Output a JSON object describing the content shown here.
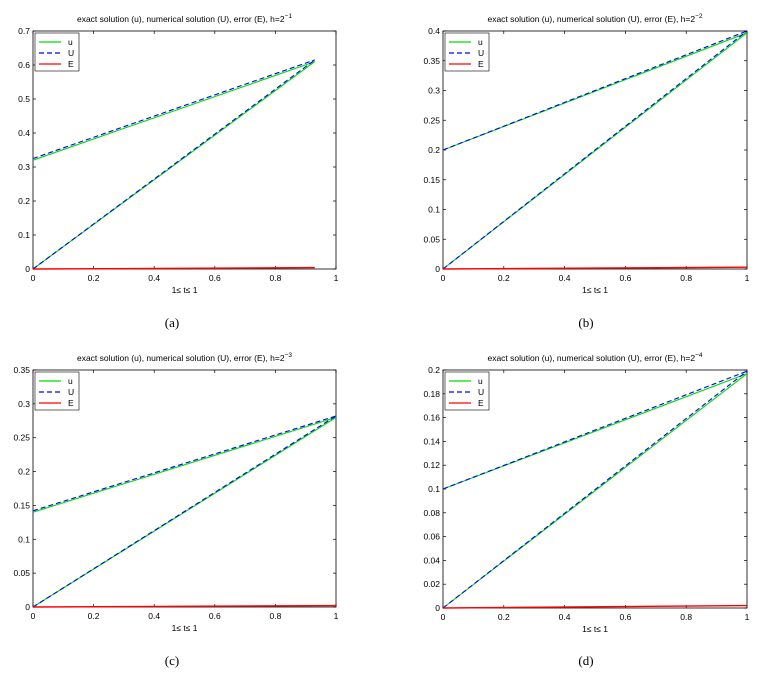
{
  "figure": {
    "panels": [
      {
        "id": "a",
        "caption": "(a)",
        "title_main": "exact solution (u), numerical solution (U), error (E), h=2",
        "title_exp": "−1",
        "xlabel": "1≤ t≤ 1"
      },
      {
        "id": "b",
        "caption": "(b)",
        "title_main": "exact solution (u), numerical solution (U), error (E), h=2",
        "title_exp": "−2",
        "xlabel": "1≤ t≤ 1"
      },
      {
        "id": "c",
        "caption": "(c)",
        "title_main": "exact solution (u), numerical solution (U), error (E), h=2",
        "title_exp": "−3",
        "xlabel": "1≤ t≤ 1"
      },
      {
        "id": "d",
        "caption": "(d)",
        "title_main": "exact solution (u), numerical solution (U), error (E), h=2",
        "title_exp": "−4",
        "xlabel": "1≤ t≤ 1"
      }
    ]
  },
  "chart_data": [
    {
      "type": "line",
      "title": "exact solution (u), numerical solution (U), error (E), h=2^-1",
      "xlabel": "1≤ t≤ 1",
      "ylabel": "",
      "xlim": [
        0,
        1
      ],
      "ylim": [
        0,
        0.7
      ],
      "xticks": [
        0,
        0.2,
        0.4,
        0.6,
        0.8,
        1
      ],
      "xtick_labels": [
        "0",
        "0.2",
        "0.4",
        "0.6",
        "0.8",
        "1"
      ],
      "yticks": [
        0,
        0.1,
        0.2,
        0.3,
        0.4,
        0.5,
        0.6,
        0.7
      ],
      "ytick_labels": [
        "0",
        "0.1",
        "0.2",
        "0.3",
        "0.4",
        "0.5",
        "0.6",
        "0.7"
      ],
      "legend": "top-left",
      "grid": false,
      "series": [
        {
          "name": "u",
          "color": "#00dd00",
          "style": "solid",
          "segments": [
            [
              [
                0,
                0.32
              ],
              [
                0.93,
                0.61
              ]
            ],
            [
              [
                0,
                0
              ],
              [
                0.93,
                0.61
              ]
            ]
          ]
        },
        {
          "name": "U",
          "color": "#0000ff",
          "style": "dashed",
          "segments": [
            [
              [
                0,
                0.325
              ],
              [
                0.93,
                0.615
              ]
            ],
            [
              [
                0,
                0
              ],
              [
                0.93,
                0.615
              ]
            ]
          ]
        },
        {
          "name": "E",
          "color": "#ff0000",
          "style": "solid",
          "segments": [
            [
              [
                0,
                0
              ],
              [
                0.93,
                0.004
              ]
            ]
          ]
        }
      ]
    },
    {
      "type": "line",
      "title": "exact solution (u), numerical solution (U), error (E), h=2^-2",
      "xlabel": "1≤ t≤ 1",
      "ylabel": "",
      "xlim": [
        0,
        1
      ],
      "ylim": [
        0,
        0.4
      ],
      "xticks": [
        0,
        0.2,
        0.4,
        0.6,
        0.8,
        1
      ],
      "xtick_labels": [
        "0",
        "0.2",
        "0.4",
        "0.6",
        "0.8",
        "1"
      ],
      "yticks": [
        0,
        0.05,
        0.1,
        0.15,
        0.2,
        0.25,
        0.3,
        0.35,
        0.4
      ],
      "ytick_labels": [
        "0",
        "0.05",
        "0.1",
        "0.15",
        "0.2",
        "0.25",
        "0.3",
        "0.35",
        "0.4"
      ],
      "legend": "top-left",
      "grid": false,
      "series": [
        {
          "name": "u",
          "color": "#00dd00",
          "style": "solid",
          "segments": [
            [
              [
                0,
                0.2
              ],
              [
                1,
                0.397
              ]
            ],
            [
              [
                0,
                0
              ],
              [
                1,
                0.397
              ]
            ]
          ]
        },
        {
          "name": "U",
          "color": "#0000ff",
          "style": "dashed",
          "segments": [
            [
              [
                0,
                0.2
              ],
              [
                1,
                0.4
              ]
            ],
            [
              [
                0,
                0
              ],
              [
                1,
                0.4
              ]
            ]
          ]
        },
        {
          "name": "E",
          "color": "#ff0000",
          "style": "solid",
          "segments": [
            [
              [
                0,
                0
              ],
              [
                1,
                0.003
              ]
            ]
          ]
        }
      ]
    },
    {
      "type": "line",
      "title": "exact solution (u), numerical solution (U), error (E), h=2^-3",
      "xlabel": "1≤ t≤ 1",
      "ylabel": "",
      "xlim": [
        0,
        1
      ],
      "ylim": [
        0,
        0.35
      ],
      "xticks": [
        0,
        0.2,
        0.4,
        0.6,
        0.8,
        1
      ],
      "xtick_labels": [
        "0",
        "0.2",
        "0.4",
        "0.6",
        "0.8",
        "1"
      ],
      "yticks": [
        0,
        0.05,
        0.1,
        0.15,
        0.2,
        0.25,
        0.3,
        0.35
      ],
      "ytick_labels": [
        "0",
        "0.05",
        "0.1",
        "0.15",
        "0.2",
        "0.25",
        "0.3",
        "0.35"
      ],
      "legend": "top-left",
      "grid": false,
      "series": [
        {
          "name": "u",
          "color": "#00dd00",
          "style": "solid",
          "segments": [
            [
              [
                0,
                0.14
              ],
              [
                1,
                0.28
              ]
            ],
            [
              [
                0,
                0
              ],
              [
                1,
                0.28
              ]
            ]
          ]
        },
        {
          "name": "U",
          "color": "#0000ff",
          "style": "dashed",
          "segments": [
            [
              [
                0,
                0.142
              ],
              [
                1,
                0.282
              ]
            ],
            [
              [
                0,
                0
              ],
              [
                1,
                0.282
              ]
            ]
          ]
        },
        {
          "name": "E",
          "color": "#ff0000",
          "style": "solid",
          "segments": [
            [
              [
                0,
                0
              ],
              [
                1,
                0.002
              ]
            ]
          ]
        }
      ]
    },
    {
      "type": "line",
      "title": "exact solution (u), numerical solution (U), error (E), h=2^-4",
      "xlabel": "1≤ t≤ 1",
      "ylabel": "",
      "xlim": [
        0,
        1
      ],
      "ylim": [
        0,
        0.2
      ],
      "xticks": [
        0,
        0.2,
        0.4,
        0.6,
        0.8,
        1
      ],
      "xtick_labels": [
        "0",
        "0.2",
        "0.4",
        "0.6",
        "0.8",
        "1"
      ],
      "yticks": [
        0,
        0.02,
        0.04,
        0.06,
        0.08,
        0.1,
        0.12,
        0.14,
        0.16,
        0.18,
        0.2
      ],
      "ytick_labels": [
        "0",
        "0.02",
        "0.04",
        "0.06",
        "0.08",
        "0.1",
        "0.12",
        "0.14",
        "0.16",
        "0.18",
        "0.2"
      ],
      "legend": "top-left",
      "grid": false,
      "series": [
        {
          "name": "u",
          "color": "#00dd00",
          "style": "solid",
          "segments": [
            [
              [
                0,
                0.1
              ],
              [
                1,
                0.197
              ]
            ],
            [
              [
                0,
                0
              ],
              [
                1,
                0.197
              ]
            ]
          ]
        },
        {
          "name": "U",
          "color": "#0000ff",
          "style": "dashed",
          "segments": [
            [
              [
                0,
                0.1
              ],
              [
                1,
                0.199
              ]
            ],
            [
              [
                0,
                0
              ],
              [
                1,
                0.199
              ]
            ]
          ]
        },
        {
          "name": "E",
          "color": "#ff0000",
          "style": "solid",
          "segments": [
            [
              [
                0,
                0
              ],
              [
                1,
                0.002
              ]
            ]
          ]
        }
      ]
    }
  ]
}
